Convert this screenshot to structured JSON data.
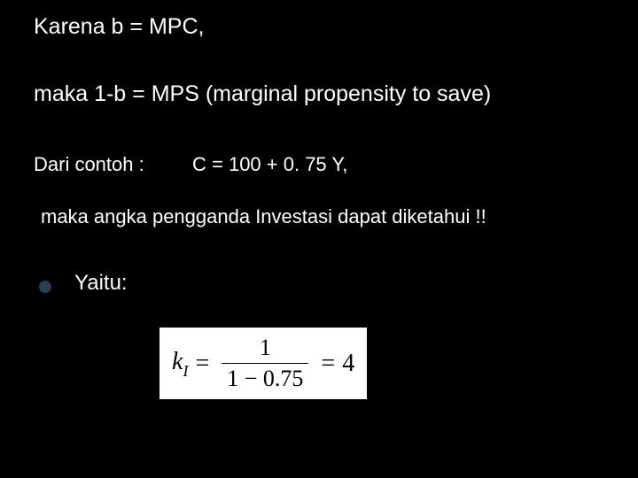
{
  "background_color": "#000000",
  "text_color": "#ffffff",
  "font_family": "Verdana",
  "bullet_color": "#2c3d54",
  "lines": {
    "l1": "Karena b = MPC,",
    "l2": "maka 1-b = MPS (marginal propensity to save)",
    "l3_label": "Dari contoh :",
    "l3_eq": "C = 100 + 0. 75 Y,",
    "l4": "maka angka pengganda Investasi dapat diketahui !!",
    "l5": "Yaitu:"
  },
  "equation": {
    "lhs_symbol": "k",
    "lhs_subscript": "I",
    "numerator": "1",
    "denominator": "1 − 0.75",
    "result": "4",
    "box_bg": "#ffffff",
    "text_color": "#000000",
    "font_family": "Times New Roman",
    "font_size_pt": 28
  }
}
